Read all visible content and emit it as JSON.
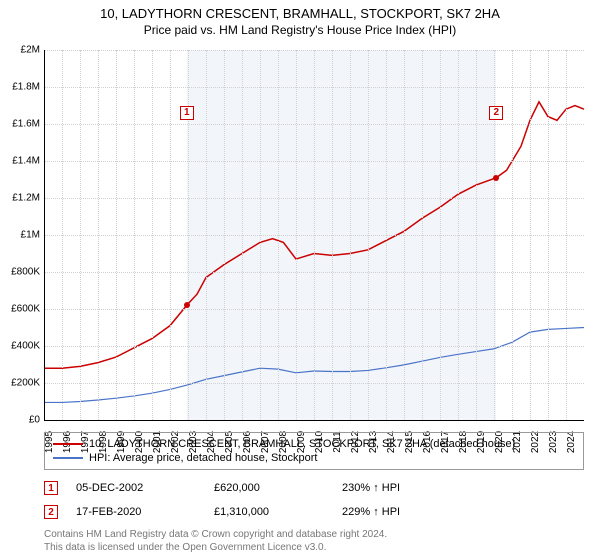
{
  "title": "10, LADYTHORN CRESCENT, BRAMHALL, STOCKPORT, SK7 2HA",
  "subtitle": "Price paid vs. HM Land Registry's House Price Index (HPI)",
  "chart": {
    "type": "line",
    "background_color": "#ffffff",
    "shade_color": "#f2f5fa",
    "grid_color": "#d0d0d0",
    "axis_color": "#000000",
    "xlim": [
      1995,
      2025
    ],
    "ylim": [
      0,
      2000000
    ],
    "ytick_step": 200000,
    "ytick_labels": [
      "£0",
      "£200K",
      "£400K",
      "£600K",
      "£800K",
      "£1M",
      "£1.2M",
      "£1.4M",
      "£1.6M",
      "£1.8M",
      "£2M"
    ],
    "xticks": [
      1995,
      1996,
      1997,
      1998,
      1999,
      2000,
      2001,
      2002,
      2003,
      2004,
      2005,
      2006,
      2007,
      2008,
      2009,
      2010,
      2011,
      2012,
      2013,
      2014,
      2015,
      2016,
      2017,
      2018,
      2019,
      2020,
      2021,
      2022,
      2023,
      2024
    ],
    "shade_range": [
      2002.93,
      2020.13
    ],
    "series": [
      {
        "name": "property",
        "color": "#cc0000",
        "width": 1.5,
        "legend": "10, LADYTHORN CRESCENT, BRAMHALL, STOCKPORT, SK7 2HA (detached house)",
        "points": [
          [
            1995,
            280000
          ],
          [
            1996,
            280000
          ],
          [
            1997,
            290000
          ],
          [
            1998,
            310000
          ],
          [
            1999,
            340000
          ],
          [
            2000,
            390000
          ],
          [
            2001,
            440000
          ],
          [
            2002,
            510000
          ],
          [
            2002.93,
            620000
          ],
          [
            2003.5,
            680000
          ],
          [
            2004,
            770000
          ],
          [
            2005,
            840000
          ],
          [
            2006,
            900000
          ],
          [
            2007,
            960000
          ],
          [
            2007.7,
            980000
          ],
          [
            2008.3,
            960000
          ],
          [
            2009,
            870000
          ],
          [
            2010,
            900000
          ],
          [
            2011,
            890000
          ],
          [
            2012,
            900000
          ],
          [
            2013,
            920000
          ],
          [
            2014,
            970000
          ],
          [
            2015,
            1020000
          ],
          [
            2016,
            1090000
          ],
          [
            2017,
            1150000
          ],
          [
            2018,
            1220000
          ],
          [
            2019,
            1270000
          ],
          [
            2020.13,
            1310000
          ],
          [
            2020.7,
            1350000
          ],
          [
            2021.5,
            1480000
          ],
          [
            2022,
            1620000
          ],
          [
            2022.5,
            1720000
          ],
          [
            2023,
            1640000
          ],
          [
            2023.5,
            1620000
          ],
          [
            2024,
            1680000
          ],
          [
            2024.5,
            1700000
          ],
          [
            2025,
            1680000
          ]
        ]
      },
      {
        "name": "hpi",
        "color": "#4a74c9",
        "width": 1.2,
        "legend": "HPI: Average price, detached house, Stockport",
        "points": [
          [
            1995,
            95000
          ],
          [
            1996,
            95000
          ],
          [
            1997,
            100000
          ],
          [
            1998,
            108000
          ],
          [
            1999,
            118000
          ],
          [
            2000,
            130000
          ],
          [
            2001,
            145000
          ],
          [
            2002,
            165000
          ],
          [
            2003,
            190000
          ],
          [
            2004,
            220000
          ],
          [
            2005,
            240000
          ],
          [
            2006,
            260000
          ],
          [
            2007,
            280000
          ],
          [
            2008,
            275000
          ],
          [
            2009,
            255000
          ],
          [
            2010,
            265000
          ],
          [
            2011,
            262000
          ],
          [
            2012,
            262000
          ],
          [
            2013,
            268000
          ],
          [
            2014,
            282000
          ],
          [
            2015,
            298000
          ],
          [
            2016,
            318000
          ],
          [
            2017,
            338000
          ],
          [
            2018,
            355000
          ],
          [
            2019,
            370000
          ],
          [
            2020,
            385000
          ],
          [
            2021,
            420000
          ],
          [
            2022,
            475000
          ],
          [
            2023,
            490000
          ],
          [
            2024,
            495000
          ],
          [
            2025,
            500000
          ]
        ]
      }
    ],
    "sale_markers": [
      {
        "n": "1",
        "x": 2002.93,
        "y": 620000,
        "label_y": 1660000
      },
      {
        "n": "2",
        "x": 2020.13,
        "y": 1310000,
        "label_y": 1660000
      }
    ],
    "label_fontsize": 10,
    "title_fontsize": 13
  },
  "sales": [
    {
      "n": "1",
      "date": "05-DEC-2002",
      "price": "£620,000",
      "pct": "230% ↑ HPI"
    },
    {
      "n": "2",
      "date": "17-FEB-2020",
      "price": "£1,310,000",
      "pct": "229% ↑ HPI"
    }
  ],
  "footnote_line1": "Contains HM Land Registry data © Crown copyright and database right 2024.",
  "footnote_line2": "This data is licensed under the Open Government Licence v3.0."
}
